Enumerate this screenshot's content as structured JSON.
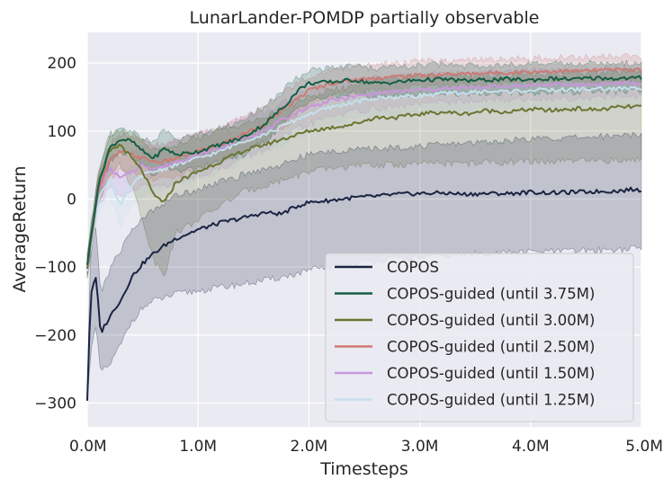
{
  "chart_data": {
    "type": "line",
    "title": "LunarLander-POMDP partially observable",
    "xlabel": "Timesteps",
    "ylabel": "AverageReturn",
    "xlim": [
      0,
      5
    ],
    "ylim": [
      -335,
      245
    ],
    "x_ticks": [
      0,
      1,
      2,
      3,
      4,
      5
    ],
    "x_tick_labels": [
      "0.0M",
      "1.0M",
      "2.0M",
      "3.0M",
      "4.0M",
      "5.0M"
    ],
    "y_ticks": [
      -300,
      -200,
      -100,
      0,
      100,
      200
    ],
    "y_tick_labels": [
      "−300",
      "−200",
      "−100",
      "0",
      "100",
      "200"
    ],
    "grid": true,
    "legend_position": "bottom-right",
    "colors": {
      "background": "#eaeaf2",
      "grid": "#ffffff"
    },
    "series": [
      {
        "name": "COPOS",
        "color": "#1a2441",
        "x": [
          0,
          0.03,
          0.08,
          0.12,
          0.16,
          0.2,
          0.25,
          0.3,
          0.4,
          0.5,
          0.6,
          0.7,
          0.8,
          1.0,
          1.2,
          1.4,
          1.6,
          1.75,
          1.9,
          2.0,
          2.2,
          2.4,
          2.6,
          2.8,
          3.0,
          3.2,
          3.4,
          3.6,
          3.8,
          4.0,
          4.2,
          4.4,
          4.6,
          4.8,
          4.9,
          5.0
        ],
        "y": [
          -295,
          -140,
          -115,
          -198,
          -185,
          -175,
          -160,
          -150,
          -115,
          -95,
          -80,
          -68,
          -58,
          -45,
          -35,
          -28,
          -20,
          -22,
          -10,
          -5,
          -2,
          2,
          4,
          7,
          8,
          9,
          7,
          8,
          8,
          10,
          9,
          10,
          11,
          12,
          14,
          13
        ],
        "band_lower": [
          -300,
          -220,
          -190,
          -255,
          -250,
          -245,
          -230,
          -215,
          -180,
          -160,
          -150,
          -145,
          -140,
          -135,
          -130,
          -125,
          -120,
          -115,
          -110,
          -105,
          -100,
          -95,
          -90,
          -88,
          -86,
          -84,
          -82,
          -80,
          -79,
          -78,
          -77,
          -76,
          -75,
          -74,
          -73,
          -72
        ],
        "band_upper": [
          -290,
          -60,
          -40,
          -140,
          -120,
          -105,
          -90,
          -75,
          -45,
          -30,
          -15,
          -5,
          5,
          15,
          25,
          35,
          45,
          50,
          60,
          65,
          70,
          72,
          74,
          76,
          78,
          80,
          82,
          84,
          86,
          88,
          89,
          90,
          92,
          93,
          95,
          96
        ]
      },
      {
        "name": "COPOS-guided (until 3.75M)",
        "color": "#165e44",
        "x": [
          0,
          0.1,
          0.2,
          0.3,
          0.4,
          0.5,
          0.6,
          0.7,
          0.8,
          1.0,
          1.2,
          1.4,
          1.6,
          1.8,
          1.9,
          2.0,
          2.2,
          2.4,
          2.6,
          2.8,
          3.0,
          3.2,
          3.4,
          3.6,
          3.8,
          4.0,
          4.2,
          4.4,
          4.6,
          4.8,
          5.0
        ],
        "y": [
          -95,
          20,
          75,
          88,
          85,
          70,
          60,
          75,
          65,
          70,
          80,
          90,
          110,
          140,
          160,
          170,
          172,
          175,
          170,
          172,
          175,
          176,
          174,
          175,
          176,
          175,
          177,
          176,
          178,
          177,
          178
        ],
        "band_lower": [
          -110,
          0,
          55,
          70,
          65,
          50,
          35,
          50,
          40,
          45,
          55,
          65,
          85,
          115,
          135,
          145,
          150,
          155,
          150,
          152,
          155,
          156,
          155,
          156,
          157,
          156,
          158,
          157,
          159,
          158,
          160
        ],
        "band_upper": [
          -80,
          40,
          95,
          100,
          100,
          90,
          85,
          100,
          90,
          95,
          105,
          115,
          135,
          165,
          180,
          190,
          192,
          195,
          192,
          194,
          196,
          198,
          196,
          197,
          198,
          197,
          199,
          198,
          200,
          199,
          200
        ]
      },
      {
        "name": "COPOS-guided (until 3.00M)",
        "color": "#6b7531",
        "x": [
          0,
          0.1,
          0.2,
          0.3,
          0.4,
          0.5,
          0.6,
          0.7,
          0.8,
          1.0,
          1.2,
          1.4,
          1.6,
          1.8,
          2.0,
          2.2,
          2.4,
          2.6,
          2.8,
          3.0,
          3.2,
          3.4,
          3.6,
          3.8,
          4.0,
          4.2,
          4.4,
          4.6,
          4.8,
          5.0
        ],
        "y": [
          -100,
          20,
          70,
          80,
          60,
          40,
          5,
          -5,
          25,
          40,
          55,
          70,
          80,
          90,
          100,
          105,
          110,
          120,
          120,
          125,
          128,
          125,
          130,
          128,
          132,
          130,
          133,
          131,
          135,
          136
        ],
        "band_lower": [
          -115,
          -5,
          40,
          50,
          20,
          -30,
          -90,
          -110,
          -50,
          -30,
          -10,
          10,
          20,
          30,
          40,
          45,
          48,
          50,
          50,
          52,
          53,
          52,
          54,
          54,
          55,
          55,
          56,
          56,
          57,
          58
        ],
        "band_upper": [
          -85,
          45,
          95,
          100,
          95,
          85,
          75,
          70,
          80,
          90,
          100,
          110,
          120,
          135,
          150,
          160,
          165,
          175,
          178,
          180,
          182,
          180,
          183,
          182,
          185,
          184,
          186,
          185,
          187,
          188
        ]
      },
      {
        "name": "COPOS-guided (until 2.50M)",
        "color": "#cd7a73",
        "x": [
          0,
          0.1,
          0.2,
          0.3,
          0.4,
          0.5,
          0.6,
          0.7,
          0.8,
          1.0,
          1.2,
          1.4,
          1.6,
          1.8,
          2.0,
          2.2,
          2.4,
          2.6,
          2.8,
          3.0,
          3.2,
          3.4,
          3.6,
          3.8,
          4.0,
          4.2,
          4.4,
          4.6,
          4.8,
          5.0
        ],
        "y": [
          -100,
          15,
          55,
          70,
          65,
          60,
          55,
          55,
          60,
          70,
          80,
          95,
          110,
          135,
          160,
          170,
          175,
          178,
          180,
          182,
          183,
          184,
          185,
          186,
          187,
          188,
          188,
          189,
          190,
          190
        ],
        "band_lower": [
          -115,
          -5,
          30,
          45,
          40,
          35,
          30,
          30,
          35,
          45,
          55,
          70,
          85,
          110,
          140,
          150,
          158,
          160,
          162,
          165,
          166,
          167,
          168,
          170,
          170,
          171,
          172,
          172,
          173,
          174
        ],
        "band_upper": [
          -85,
          35,
          80,
          95,
          90,
          85,
          80,
          80,
          85,
          95,
          105,
          120,
          135,
          160,
          180,
          190,
          195,
          198,
          200,
          202,
          203,
          204,
          205,
          206,
          207,
          208,
          208,
          209,
          210,
          210
        ]
      },
      {
        "name": "COPOS-guided (until 1.50M)",
        "color": "#c896dc",
        "x": [
          0,
          0.1,
          0.2,
          0.3,
          0.4,
          0.5,
          0.6,
          0.7,
          0.8,
          1.0,
          1.2,
          1.4,
          1.6,
          1.8,
          2.0,
          2.2,
          2.4,
          2.6,
          2.8,
          3.0,
          3.2,
          3.4,
          3.6,
          3.8,
          4.0,
          4.2,
          4.4,
          4.6,
          4.8,
          5.0
        ],
        "y": [
          -100,
          10,
          45,
          30,
          40,
          50,
          45,
          48,
          55,
          65,
          75,
          90,
          100,
          120,
          135,
          145,
          150,
          155,
          158,
          160,
          162,
          163,
          165,
          166,
          167,
          168,
          168,
          169,
          170,
          170
        ],
        "band_lower": [
          -115,
          -10,
          20,
          0,
          10,
          20,
          18,
          20,
          25,
          35,
          45,
          60,
          72,
          95,
          110,
          122,
          128,
          133,
          136,
          140,
          142,
          143,
          145,
          146,
          147,
          148,
          148,
          149,
          150,
          150
        ],
        "band_upper": [
          -85,
          30,
          70,
          60,
          70,
          80,
          75,
          78,
          85,
          95,
          105,
          120,
          128,
          145,
          160,
          170,
          172,
          177,
          180,
          182,
          184,
          185,
          187,
          188,
          189,
          190,
          190,
          191,
          192,
          192
        ]
      },
      {
        "name": "COPOS-guided (until 1.25M)",
        "color": "#c5e0ec",
        "x": [
          0,
          0.1,
          0.2,
          0.3,
          0.4,
          0.5,
          0.6,
          0.7,
          0.8,
          1.0,
          1.2,
          1.4,
          1.6,
          1.8,
          2.0,
          2.2,
          2.4,
          2.6,
          2.8,
          3.0,
          3.2,
          3.4,
          3.6,
          3.8,
          4.0,
          4.2,
          4.4,
          4.6,
          4.8,
          5.0
        ],
        "y": [
          -105,
          0,
          30,
          -10,
          20,
          35,
          40,
          45,
          50,
          60,
          70,
          85,
          95,
          110,
          125,
          135,
          142,
          148,
          150,
          152,
          155,
          156,
          158,
          158,
          160,
          160,
          161,
          162,
          162,
          163
        ],
        "band_lower": [
          -120,
          -20,
          5,
          -40,
          -10,
          5,
          10,
          15,
          22,
          30,
          40,
          55,
          68,
          85,
          100,
          110,
          118,
          124,
          126,
          128,
          130,
          131,
          133,
          133,
          135,
          135,
          136,
          137,
          137,
          138
        ],
        "band_upper": [
          -90,
          20,
          55,
          20,
          50,
          65,
          70,
          75,
          78,
          90,
          100,
          115,
          122,
          135,
          150,
          160,
          166,
          172,
          174,
          176,
          180,
          181,
          183,
          183,
          185,
          185,
          186,
          187,
          187,
          188
        ]
      }
    ]
  }
}
